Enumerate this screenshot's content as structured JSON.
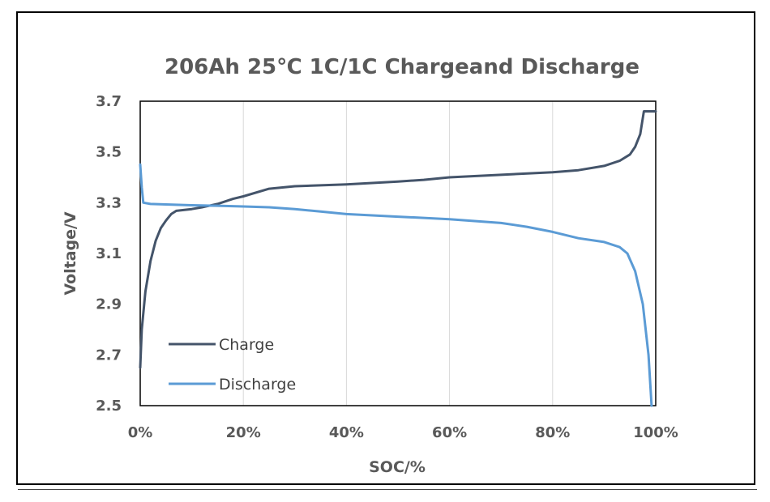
{
  "chart_data": {
    "type": "line",
    "title": "206Ah 25℃ 1C/1C Chargeand Discharge",
    "xlabel": "SOC/%",
    "ylabel": "Voltage/V",
    "xlim": [
      0,
      100
    ],
    "ylim": [
      2.5,
      3.7
    ],
    "x_ticks": [
      "0%",
      "20%",
      "40%",
      "60%",
      "80%",
      "100%"
    ],
    "y_ticks": [
      "2.5",
      "2.7",
      "2.9",
      "3.1",
      "3.3",
      "3.5",
      "3.7"
    ],
    "grid": "vertical",
    "legend": "bottom-left inside",
    "series": [
      {
        "name": "Charge",
        "color": "#44546a",
        "points": [
          [
            0,
            2.65
          ],
          [
            0.3,
            2.8
          ],
          [
            1,
            2.95
          ],
          [
            2,
            3.07
          ],
          [
            3,
            3.15
          ],
          [
            4,
            3.2
          ],
          [
            5,
            3.23
          ],
          [
            6,
            3.255
          ],
          [
            7,
            3.268
          ],
          [
            10,
            3.275
          ],
          [
            12,
            3.282
          ],
          [
            15,
            3.295
          ],
          [
            18,
            3.315
          ],
          [
            20,
            3.325
          ],
          [
            25,
            3.355
          ],
          [
            30,
            3.365
          ],
          [
            40,
            3.372
          ],
          [
            50,
            3.383
          ],
          [
            55,
            3.39
          ],
          [
            60,
            3.4
          ],
          [
            70,
            3.41
          ],
          [
            80,
            3.42
          ],
          [
            85,
            3.428
          ],
          [
            90,
            3.445
          ],
          [
            93,
            3.465
          ],
          [
            95,
            3.49
          ],
          [
            96,
            3.52
          ],
          [
            97,
            3.57
          ],
          [
            97.7,
            3.66
          ],
          [
            99,
            3.66
          ],
          [
            100,
            3.66
          ]
        ]
      },
      {
        "name": "Discharge",
        "color": "#5b9bd5",
        "points": [
          [
            0,
            3.45
          ],
          [
            0.3,
            3.36
          ],
          [
            0.6,
            3.3
          ],
          [
            2,
            3.295
          ],
          [
            5,
            3.293
          ],
          [
            10,
            3.29
          ],
          [
            15,
            3.288
          ],
          [
            20,
            3.285
          ],
          [
            25,
            3.282
          ],
          [
            30,
            3.275
          ],
          [
            35,
            3.265
          ],
          [
            40,
            3.255
          ],
          [
            50,
            3.245
          ],
          [
            60,
            3.235
          ],
          [
            70,
            3.22
          ],
          [
            75,
            3.205
          ],
          [
            80,
            3.185
          ],
          [
            85,
            3.16
          ],
          [
            90,
            3.145
          ],
          [
            93,
            3.125
          ],
          [
            94.5,
            3.1
          ],
          [
            96,
            3.03
          ],
          [
            97.5,
            2.9
          ],
          [
            98.6,
            2.7
          ],
          [
            99.2,
            2.5
          ]
        ]
      }
    ]
  }
}
